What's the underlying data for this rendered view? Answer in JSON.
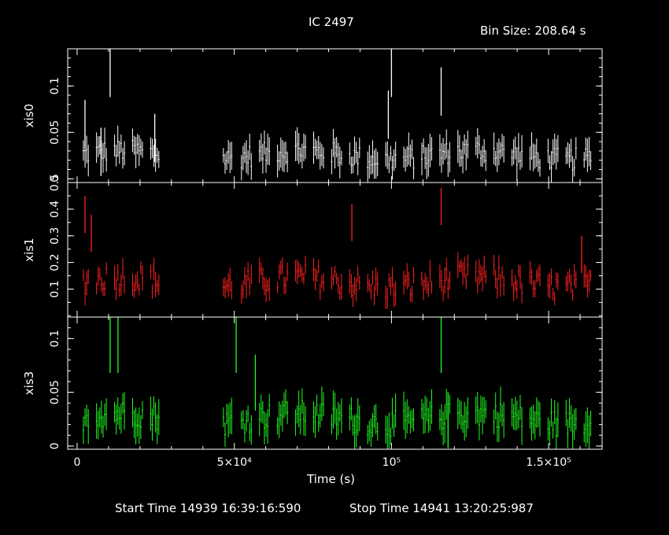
{
  "title": "IC 2497",
  "bin_size": "Bin Size: 208.64 s",
  "footer": {
    "start": "Start Time 14939 16:39:16:590",
    "stop": "Stop Time 14941 13:20:25:987"
  },
  "colors": {
    "xis0": "#ffffff",
    "xis1": "#ff2020",
    "xis3": "#20ff20",
    "frame": "#ffffff",
    "background": "#000000"
  },
  "chart_data": {
    "type": "scatter",
    "title": "IC 2497",
    "xlabel": "Time (s)",
    "xlim": [
      -3000,
      167000
    ],
    "x_ticks": [
      {
        "value": 0,
        "label": "0"
      },
      {
        "value": 50000,
        "label": "5×10⁴"
      },
      {
        "value": 100000,
        "label": "10⁵"
      },
      {
        "value": 150000,
        "label": "1.5×10⁵"
      }
    ],
    "panels": [
      {
        "name": "xis0",
        "ylabel": "xis0",
        "ylim": [
          -0.004,
          0.14
        ],
        "yticks": [
          0,
          0.05,
          0.1
        ],
        "ytick_labels": [
          "0",
          "0.05",
          "0.1"
        ],
        "color": "#ffffff",
        "base": 0.022,
        "noise": 0.012,
        "err": 0.013,
        "segments": [
          [
            2000,
            26000
          ],
          [
            45500,
            163500
          ]
        ],
        "spikes": [
          [
            10500,
            0.14
          ],
          [
            100000,
            0.14
          ],
          [
            99000,
            0.095
          ],
          [
            115800,
            0.12
          ],
          [
            2500,
            0.085
          ],
          [
            24700,
            0.07
          ],
          [
            7600,
            0.055
          ]
        ]
      },
      {
        "name": "xis1",
        "ylabel": "xis1",
        "ylim": [
          -0.005,
          0.5
        ],
        "yticks": [
          0.1,
          0.2,
          0.3,
          0.4,
          0.5
        ],
        "ytick_labels": [
          "0.1",
          "0.2",
          "0.3",
          "0.4",
          "0.5"
        ],
        "color": "#ff2020",
        "base": 0.11,
        "noise": 0.05,
        "err": 0.035,
        "segments": [
          [
            2000,
            26000
          ],
          [
            45500,
            163500
          ]
        ],
        "spikes": [
          [
            2500,
            0.45
          ],
          [
            4500,
            0.38
          ],
          [
            115800,
            0.48
          ],
          [
            87400,
            0.42
          ],
          [
            160500,
            0.3
          ]
        ]
      },
      {
        "name": "xis3",
        "ylabel": "xis3",
        "ylim": [
          -0.003,
          0.12
        ],
        "yticks": [
          0,
          0.05,
          0.1
        ],
        "ytick_labels": [
          "0",
          "0.05",
          "0.1"
        ],
        "color": "#20ff20",
        "base": 0.022,
        "noise": 0.012,
        "err": 0.013,
        "segments": [
          [
            2000,
            26000
          ],
          [
            45500,
            163500
          ]
        ],
        "spikes": [
          [
            10500,
            0.12
          ],
          [
            13000,
            0.12
          ],
          [
            50600,
            0.12
          ],
          [
            56700,
            0.085
          ],
          [
            115800,
            0.12
          ],
          [
            118000,
            0.05
          ]
        ]
      }
    ],
    "series_note": "binned light curve points with 1-sigma vertical error bars, bin 208.64 s"
  }
}
